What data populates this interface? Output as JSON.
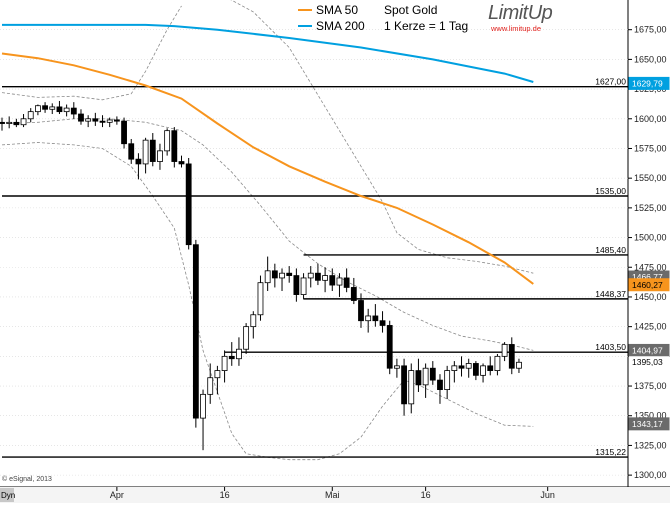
{
  "header": {
    "title": "Spot Gold",
    "subtitle": "1 Kerze = 1 Tag",
    "brand": "LimitUp",
    "brand_url": "www.limitup.de",
    "legend": [
      {
        "label": "SMA 50",
        "color": "#f7941d"
      },
      {
        "label": "SMA 200",
        "color": "#00a0e0"
      }
    ]
  },
  "footer": {
    "copyright": "© eSignal, 2013",
    "corner_label": "Dyn"
  },
  "chart_data": {
    "type": "candlestick",
    "ylim": [
      1290,
      1700
    ],
    "y_ticks": [
      1300,
      1325,
      1350,
      1375,
      1400,
      1425,
      1450,
      1475,
      1500,
      1525,
      1550,
      1575,
      1600,
      1625,
      1650,
      1675
    ],
    "y_tick_labels": [
      "1300,00",
      "1325,00",
      "1350,00",
      "1375,00",
      "1400,00",
      "1425,00",
      "1450,00",
      "1475,00",
      "1500,00",
      "1525,00",
      "1550,00",
      "1575,00",
      "1600,00",
      "1625,00",
      "1650,00",
      "1675,00"
    ],
    "x_labels": [
      {
        "label": "Apr",
        "index": 16
      },
      {
        "label": "16",
        "index": 31
      },
      {
        "label": "Mai",
        "index": 46
      },
      {
        "label": "16",
        "index": 59
      },
      {
        "label": "Jun",
        "index": 76
      }
    ],
    "candles": [
      {
        "o": 1597,
        "h": 1601,
        "l": 1590,
        "c": 1596
      },
      {
        "o": 1596,
        "h": 1602,
        "l": 1592,
        "c": 1597
      },
      {
        "o": 1597,
        "h": 1600,
        "l": 1593,
        "c": 1595
      },
      {
        "o": 1595,
        "h": 1604,
        "l": 1593,
        "c": 1600
      },
      {
        "o": 1600,
        "h": 1609,
        "l": 1597,
        "c": 1606
      },
      {
        "o": 1606,
        "h": 1612,
        "l": 1603,
        "c": 1611
      },
      {
        "o": 1611,
        "h": 1614,
        "l": 1605,
        "c": 1608
      },
      {
        "o": 1608,
        "h": 1613,
        "l": 1604,
        "c": 1610
      },
      {
        "o": 1610,
        "h": 1615,
        "l": 1604,
        "c": 1606
      },
      {
        "o": 1606,
        "h": 1612,
        "l": 1602,
        "c": 1609
      },
      {
        "o": 1609,
        "h": 1614,
        "l": 1600,
        "c": 1604
      },
      {
        "o": 1604,
        "h": 1608,
        "l": 1595,
        "c": 1598
      },
      {
        "o": 1598,
        "h": 1603,
        "l": 1593,
        "c": 1600
      },
      {
        "o": 1600,
        "h": 1605,
        "l": 1594,
        "c": 1598
      },
      {
        "o": 1598,
        "h": 1603,
        "l": 1593,
        "c": 1597
      },
      {
        "o": 1597,
        "h": 1601,
        "l": 1593,
        "c": 1599
      },
      {
        "o": 1599,
        "h": 1602,
        "l": 1595,
        "c": 1598
      },
      {
        "o": 1598,
        "h": 1601,
        "l": 1575,
        "c": 1579
      },
      {
        "o": 1579,
        "h": 1583,
        "l": 1562,
        "c": 1566
      },
      {
        "o": 1566,
        "h": 1571,
        "l": 1549,
        "c": 1562
      },
      {
        "o": 1562,
        "h": 1584,
        "l": 1554,
        "c": 1582
      },
      {
        "o": 1582,
        "h": 1588,
        "l": 1560,
        "c": 1564
      },
      {
        "o": 1564,
        "h": 1579,
        "l": 1557,
        "c": 1573
      },
      {
        "o": 1573,
        "h": 1592,
        "l": 1569,
        "c": 1590
      },
      {
        "o": 1590,
        "h": 1593,
        "l": 1559,
        "c": 1564
      },
      {
        "o": 1564,
        "h": 1569,
        "l": 1559,
        "c": 1562
      },
      {
        "o": 1562,
        "h": 1567,
        "l": 1490,
        "c": 1494
      },
      {
        "o": 1494,
        "h": 1498,
        "l": 1340,
        "c": 1348
      },
      {
        "o": 1348,
        "h": 1372,
        "l": 1321,
        "c": 1368
      },
      {
        "o": 1368,
        "h": 1394,
        "l": 1360,
        "c": 1382
      },
      {
        "o": 1382,
        "h": 1392,
        "l": 1368,
        "c": 1388
      },
      {
        "o": 1388,
        "h": 1405,
        "l": 1378,
        "c": 1400
      },
      {
        "o": 1400,
        "h": 1412,
        "l": 1392,
        "c": 1398
      },
      {
        "o": 1398,
        "h": 1416,
        "l": 1392,
        "c": 1406
      },
      {
        "o": 1406,
        "h": 1428,
        "l": 1402,
        "c": 1425
      },
      {
        "o": 1425,
        "h": 1438,
        "l": 1415,
        "c": 1435
      },
      {
        "o": 1435,
        "h": 1468,
        "l": 1430,
        "c": 1462
      },
      {
        "o": 1462,
        "h": 1484,
        "l": 1455,
        "c": 1472
      },
      {
        "o": 1472,
        "h": 1478,
        "l": 1458,
        "c": 1466
      },
      {
        "o": 1466,
        "h": 1474,
        "l": 1455,
        "c": 1470
      },
      {
        "o": 1470,
        "h": 1476,
        "l": 1462,
        "c": 1468
      },
      {
        "o": 1468,
        "h": 1474,
        "l": 1446,
        "c": 1452
      },
      {
        "o": 1452,
        "h": 1470,
        "l": 1448,
        "c": 1466
      },
      {
        "o": 1466,
        "h": 1476,
        "l": 1458,
        "c": 1470
      },
      {
        "o": 1470,
        "h": 1478,
        "l": 1460,
        "c": 1464
      },
      {
        "o": 1464,
        "h": 1475,
        "l": 1454,
        "c": 1468
      },
      {
        "o": 1468,
        "h": 1474,
        "l": 1455,
        "c": 1460
      },
      {
        "o": 1460,
        "h": 1470,
        "l": 1450,
        "c": 1466
      },
      {
        "o": 1466,
        "h": 1474,
        "l": 1454,
        "c": 1458
      },
      {
        "o": 1458,
        "h": 1466,
        "l": 1444,
        "c": 1447
      },
      {
        "o": 1447,
        "h": 1453,
        "l": 1424,
        "c": 1430
      },
      {
        "o": 1430,
        "h": 1440,
        "l": 1420,
        "c": 1434
      },
      {
        "o": 1434,
        "h": 1444,
        "l": 1425,
        "c": 1430
      },
      {
        "o": 1430,
        "h": 1438,
        "l": 1420,
        "c": 1426
      },
      {
        "o": 1426,
        "h": 1430,
        "l": 1385,
        "c": 1390
      },
      {
        "o": 1390,
        "h": 1398,
        "l": 1382,
        "c": 1392
      },
      {
        "o": 1392,
        "h": 1398,
        "l": 1350,
        "c": 1360
      },
      {
        "o": 1360,
        "h": 1394,
        "l": 1352,
        "c": 1388
      },
      {
        "o": 1388,
        "h": 1398,
        "l": 1370,
        "c": 1376
      },
      {
        "o": 1376,
        "h": 1394,
        "l": 1365,
        "c": 1390
      },
      {
        "o": 1390,
        "h": 1396,
        "l": 1376,
        "c": 1380
      },
      {
        "o": 1380,
        "h": 1385,
        "l": 1360,
        "c": 1372
      },
      {
        "o": 1372,
        "h": 1392,
        "l": 1364,
        "c": 1388
      },
      {
        "o": 1388,
        "h": 1396,
        "l": 1378,
        "c": 1392
      },
      {
        "o": 1392,
        "h": 1400,
        "l": 1383,
        "c": 1390
      },
      {
        "o": 1390,
        "h": 1398,
        "l": 1382,
        "c": 1394
      },
      {
        "o": 1394,
        "h": 1396,
        "l": 1380,
        "c": 1384
      },
      {
        "o": 1384,
        "h": 1394,
        "l": 1378,
        "c": 1392
      },
      {
        "o": 1392,
        "h": 1400,
        "l": 1384,
        "c": 1388
      },
      {
        "o": 1388,
        "h": 1402,
        "l": 1384,
        "c": 1400
      },
      {
        "o": 1400,
        "h": 1412,
        "l": 1396,
        "c": 1410
      },
      {
        "o": 1410,
        "h": 1416,
        "l": 1385,
        "c": 1390
      },
      {
        "o": 1390,
        "h": 1398,
        "l": 1386,
        "c": 1395
      }
    ],
    "sma50": [
      [
        0,
        1655
      ],
      [
        5,
        1651
      ],
      [
        10,
        1645
      ],
      [
        15,
        1637
      ],
      [
        20,
        1628
      ],
      [
        25,
        1617
      ],
      [
        30,
        1596
      ],
      [
        35,
        1576
      ],
      [
        40,
        1560
      ],
      [
        45,
        1547
      ],
      [
        50,
        1535
      ],
      [
        55,
        1525
      ],
      [
        60,
        1511
      ],
      [
        65,
        1496
      ],
      [
        70,
        1479
      ],
      [
        74,
        1461
      ]
    ],
    "sma200": [
      [
        0,
        1679
      ],
      [
        10,
        1679
      ],
      [
        20,
        1679
      ],
      [
        24,
        1678
      ],
      [
        30,
        1675
      ],
      [
        40,
        1668
      ],
      [
        50,
        1660
      ],
      [
        60,
        1650
      ],
      [
        70,
        1638
      ],
      [
        74,
        1631
      ]
    ],
    "bb_upper": [
      [
        0,
        1622
      ],
      [
        5,
        1618
      ],
      [
        10,
        1619
      ],
      [
        14,
        1616
      ],
      [
        18,
        1621
      ],
      [
        20,
        1640
      ],
      [
        23,
        1675
      ],
      [
        25,
        1695
      ]
    ],
    "bb_upper2": [
      [
        31,
        1703
      ],
      [
        35,
        1690
      ],
      [
        40,
        1660
      ],
      [
        45,
        1610
      ],
      [
        50,
        1560
      ],
      [
        53,
        1530
      ],
      [
        55,
        1504
      ],
      [
        58,
        1490
      ],
      [
        62,
        1483
      ],
      [
        66,
        1480
      ],
      [
        70,
        1476
      ],
      [
        74,
        1470
      ]
    ],
    "bb_middle": [
      [
        0,
        1596
      ],
      [
        5,
        1597
      ],
      [
        10,
        1600
      ],
      [
        15,
        1600
      ],
      [
        20,
        1597
      ],
      [
        25,
        1590
      ],
      [
        28,
        1578
      ],
      [
        32,
        1555
      ],
      [
        36,
        1527
      ],
      [
        40,
        1497
      ],
      [
        44,
        1478
      ],
      [
        48,
        1463
      ],
      [
        52,
        1451
      ],
      [
        56,
        1437
      ],
      [
        60,
        1426
      ],
      [
        64,
        1417
      ],
      [
        68,
        1413
      ],
      [
        72,
        1408
      ],
      [
        74,
        1405
      ]
    ],
    "bb_lower": [
      [
        0,
        1578
      ],
      [
        5,
        1580
      ],
      [
        10,
        1578
      ],
      [
        14,
        1575
      ],
      [
        18,
        1560
      ],
      [
        21,
        1535
      ],
      [
        24,
        1508
      ],
      [
        26,
        1460
      ],
      [
        28,
        1405
      ],
      [
        30,
        1370
      ],
      [
        32,
        1335
      ],
      [
        34,
        1318
      ],
      [
        37,
        1315
      ],
      [
        40,
        1313
      ],
      [
        44,
        1313
      ],
      [
        47,
        1318
      ],
      [
        50,
        1332
      ],
      [
        53,
        1358
      ],
      [
        56,
        1380
      ],
      [
        58,
        1376
      ],
      [
        62,
        1364
      ],
      [
        66,
        1352
      ],
      [
        70,
        1342
      ],
      [
        74,
        1341
      ]
    ],
    "horizontal_levels": [
      {
        "value": 1627.0,
        "label": "1627,00",
        "start_index": 0
      },
      {
        "value": 1535.0,
        "label": "1535,00",
        "start_index": 0
      },
      {
        "value": 1485.4,
        "label": "1485,40",
        "start_index": 42
      },
      {
        "value": 1448.37,
        "label": "1448,37",
        "start_index": 42
      },
      {
        "value": 1403.5,
        "label": "1403,50",
        "start_index": 31
      },
      {
        "value": 1315.22,
        "label": "1315,22",
        "start_index": 0
      }
    ],
    "price_badges": [
      {
        "value": 1629.79,
        "label": "1629,79",
        "bg": "#00a0e0",
        "fg": "#ffffff"
      },
      {
        "value": 1466.77,
        "label": "1466,77",
        "bg": "#6b6b6b",
        "fg": "#ffffff"
      },
      {
        "value": 1460.27,
        "label": "1460,27",
        "bg": "#f7941d",
        "fg": "#000000"
      },
      {
        "value": 1404.97,
        "label": "1404,97",
        "bg": "#6b6b6b",
        "fg": "#ffffff"
      },
      {
        "value": 1395.03,
        "label": "1395,03",
        "bg": "#ffffff",
        "fg": "#000000"
      },
      {
        "value": 1343.17,
        "label": "1343,17",
        "bg": "#6b6b6b",
        "fg": "#ffffff"
      }
    ],
    "colors": {
      "up_candle": "#ffffff",
      "down_candle": "#000000",
      "sma50": "#f7941d",
      "sma200": "#00a0e0",
      "bands": "#8a8a8a",
      "levels": "#000000",
      "grid": "#d8d8d8"
    }
  }
}
